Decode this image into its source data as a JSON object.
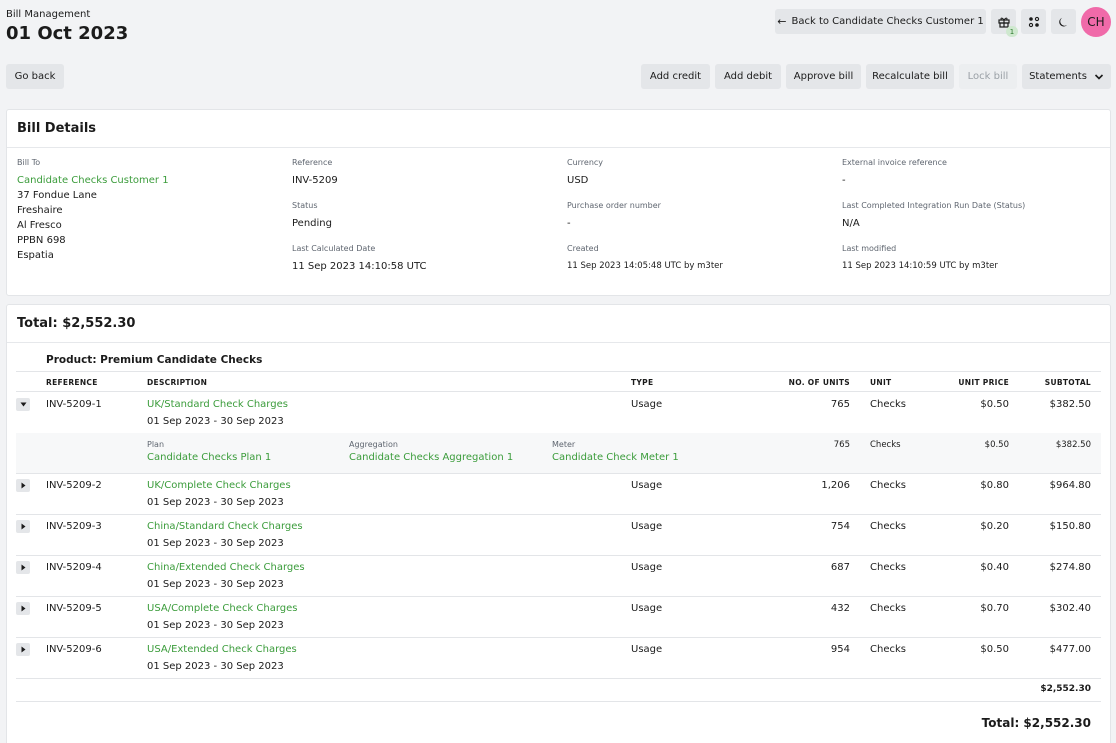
{
  "header": {
    "breadcrumb": "Bill Management",
    "title": "01 Oct 2023",
    "back_label": "Back to Candidate Checks Customer 1",
    "notification_count": "1",
    "avatar_initials": "CH"
  },
  "toolbar": {
    "go_back": "Go back",
    "add_credit": "Add credit",
    "add_debit": "Add debit",
    "approve_bill": "Approve bill",
    "recalculate_bill": "Recalculate bill",
    "lock_bill": "Lock bill",
    "statements": "Statements"
  },
  "details": {
    "title": "Bill Details",
    "bill_to_label": "Bill To",
    "bill_to_name": "Candidate Checks Customer 1",
    "address": [
      "37 Fondue Lane",
      "Freshaire",
      "Al Fresco",
      "PPBN 698",
      "Espatia"
    ],
    "reference_label": "Reference",
    "reference": "INV-5209",
    "status_label": "Status",
    "status": "Pending",
    "last_calc_label": "Last Calculated Date",
    "last_calc": "11 Sep 2023 14:10:58 UTC",
    "currency_label": "Currency",
    "currency": "USD",
    "po_label": "Purchase order number",
    "po": "-",
    "created_label": "Created",
    "created": "11 Sep 2023 14:05:48 UTC by m3ter",
    "ext_ref_label": "External invoice reference",
    "ext_ref": "-",
    "integration_label": "Last Completed Integration Run Date (Status)",
    "integration": "N/A",
    "modified_label": "Last modified",
    "modified": "11 Sep 2023 14:10:59 UTC by m3ter"
  },
  "lines": {
    "total_title": "Total: $2,552.30",
    "product": "Product: Premium Candidate Checks",
    "columns": [
      "REFERENCE",
      "DESCRIPTION",
      "TYPE",
      "NO. OF UNITS",
      "UNIT",
      "UNIT PRICE",
      "SUBTOTAL"
    ],
    "rows": [
      {
        "ref": "INV-5209-1",
        "desc": "UK/Standard Check Charges",
        "period": "01 Sep 2023 - 30 Sep 2023",
        "type": "Usage",
        "units": "765",
        "unit": "Checks",
        "price": "$0.50",
        "subtotal": "$382.50"
      },
      {
        "ref": "INV-5209-2",
        "desc": "UK/Complete Check Charges",
        "period": "01 Sep 2023 - 30 Sep 2023",
        "type": "Usage",
        "units": "1,206",
        "unit": "Checks",
        "price": "$0.80",
        "subtotal": "$964.80"
      },
      {
        "ref": "INV-5209-3",
        "desc": "China/Standard Check Charges",
        "period": "01 Sep 2023 - 30 Sep 2023",
        "type": "Usage",
        "units": "754",
        "unit": "Checks",
        "price": "$0.20",
        "subtotal": "$150.80"
      },
      {
        "ref": "INV-5209-4",
        "desc": "China/Extended Check Charges",
        "period": "01 Sep 2023 - 30 Sep 2023",
        "type": "Usage",
        "units": "687",
        "unit": "Checks",
        "price": "$0.40",
        "subtotal": "$274.80"
      },
      {
        "ref": "INV-5209-5",
        "desc": "USA/Complete Check Charges",
        "period": "01 Sep 2023 - 30 Sep 2023",
        "type": "Usage",
        "units": "432",
        "unit": "Checks",
        "price": "$0.70",
        "subtotal": "$302.40"
      },
      {
        "ref": "INV-5209-6",
        "desc": "USA/Extended Check Charges",
        "period": "01 Sep 2023 - 30 Sep 2023",
        "type": "Usage",
        "units": "954",
        "unit": "Checks",
        "price": "$0.50",
        "subtotal": "$477.00"
      }
    ],
    "expanded": {
      "plan_label": "Plan",
      "plan": "Candidate Checks Plan 1",
      "agg_label": "Aggregation",
      "agg": "Candidate Checks Aggregation 1",
      "meter_label": "Meter",
      "meter": "Candidate Check Meter 1",
      "units": "765",
      "unit": "Checks",
      "price": "$0.50",
      "subtotal": "$382.50"
    },
    "product_total": "$2,552.30",
    "grand_total": "Total: $2,552.30"
  },
  "colors": {
    "accent": "#3b9c3b",
    "avatar": "#f06aa9"
  }
}
